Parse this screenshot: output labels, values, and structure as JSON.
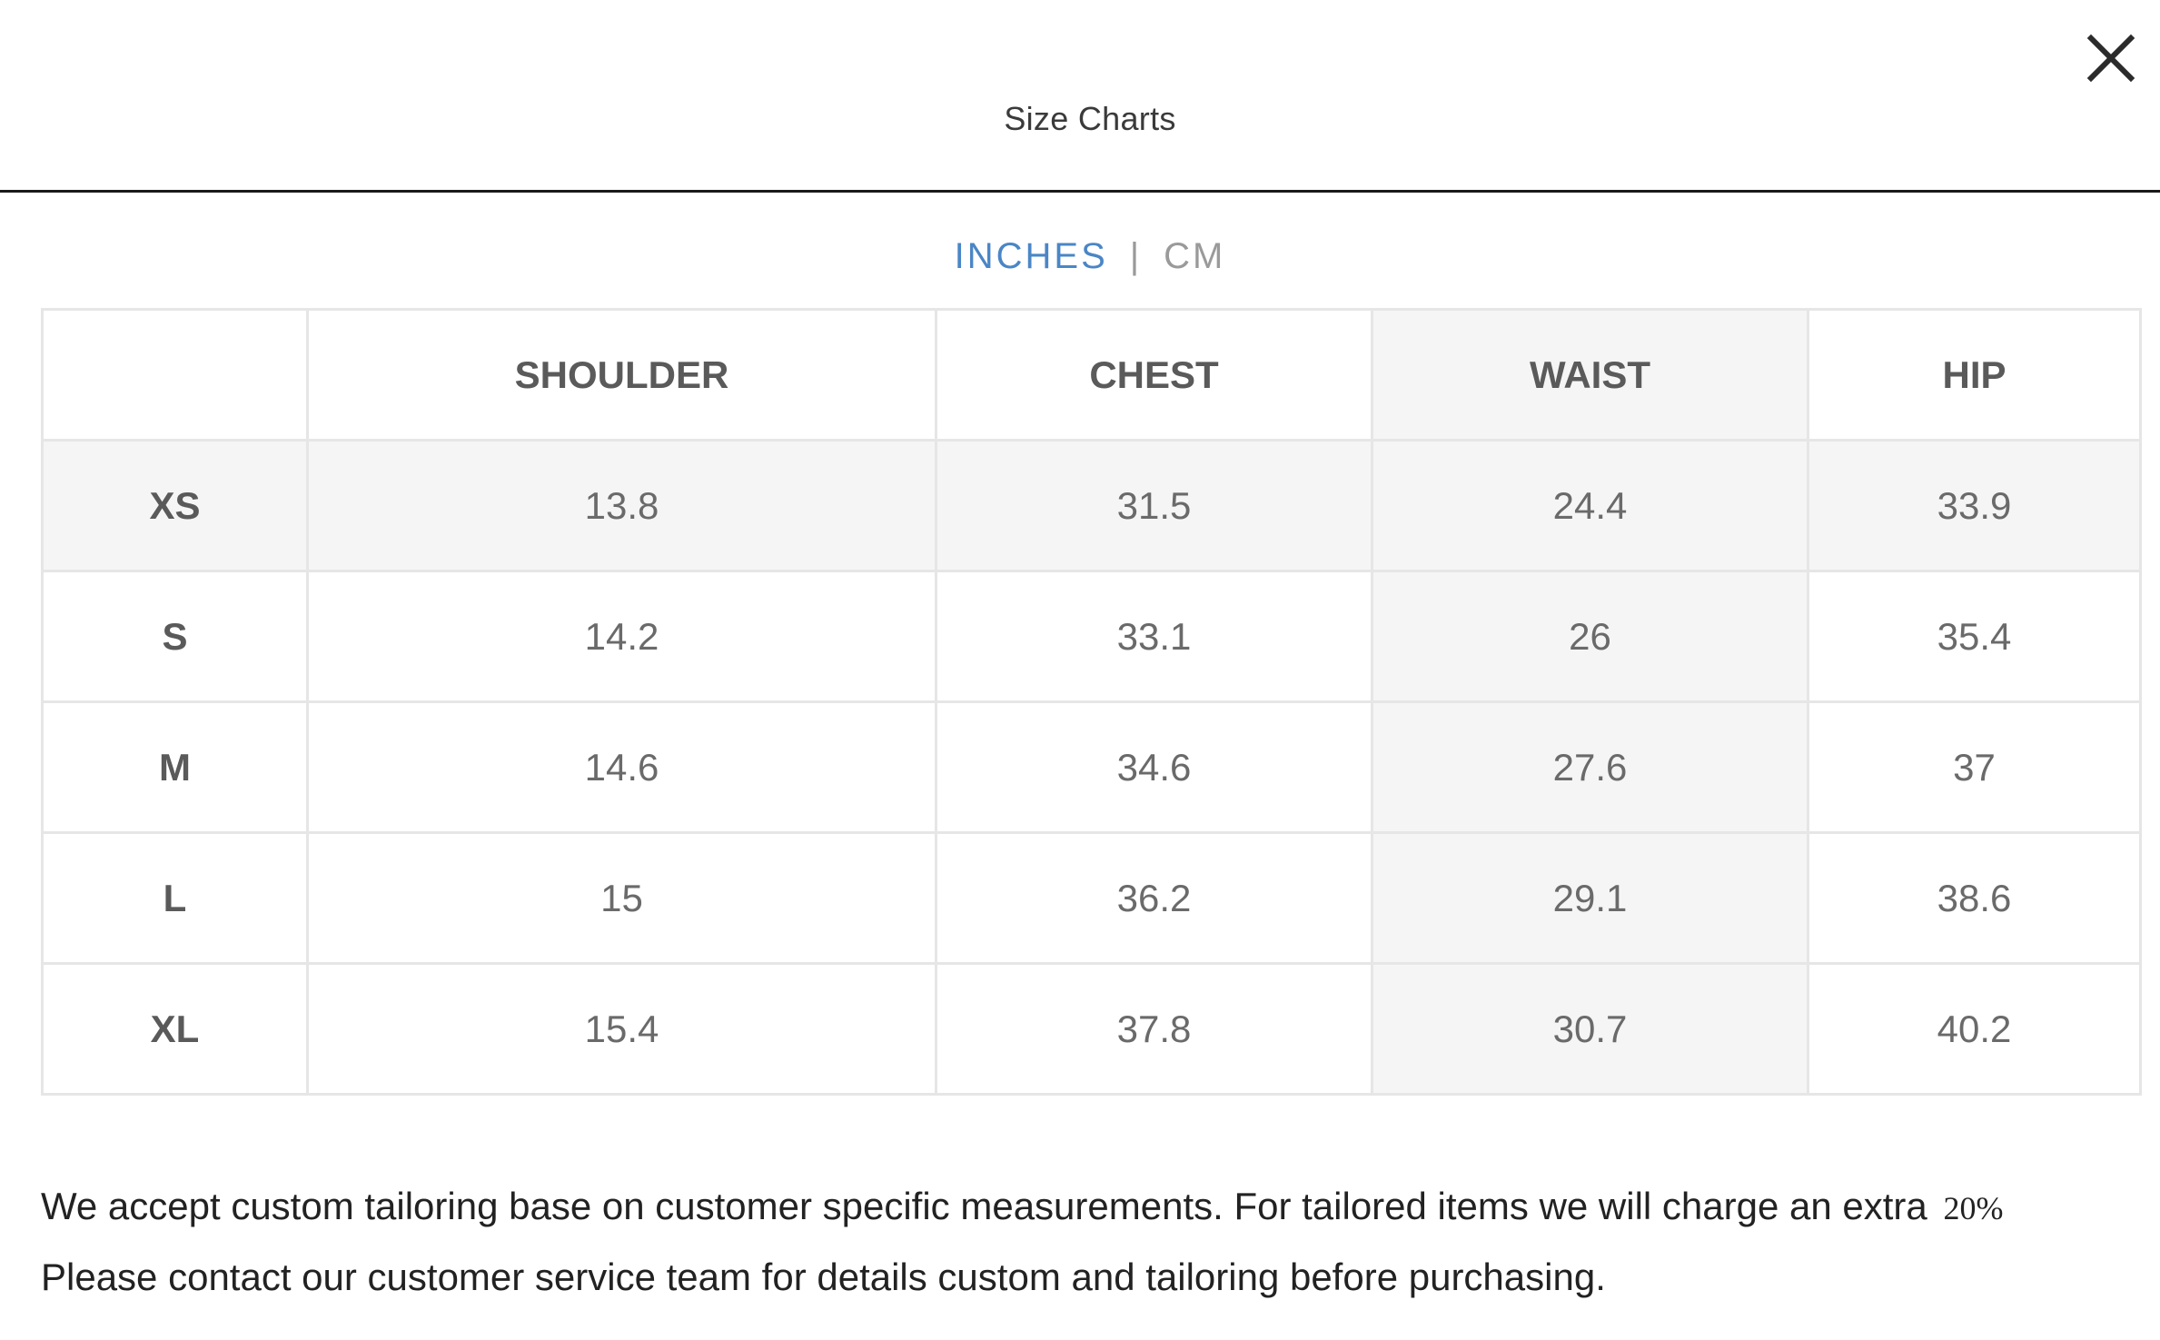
{
  "modal": {
    "title": "Size Charts",
    "close_icon": "close-icon"
  },
  "units": {
    "active": "INCHES",
    "separator": "|",
    "inactive": "CM"
  },
  "table": {
    "headers": [
      "",
      "SHOULDER",
      "CHEST",
      "WAIST",
      "HIP"
    ],
    "rows": [
      {
        "size": "XS",
        "values": [
          "13.8",
          "31.5",
          "24.4",
          "33.9"
        ]
      },
      {
        "size": "S",
        "values": [
          "14.2",
          "33.1",
          "26",
          "35.4"
        ]
      },
      {
        "size": "M",
        "values": [
          "14.6",
          "34.6",
          "27.6",
          "37"
        ]
      },
      {
        "size": "L",
        "values": [
          "15",
          "36.2",
          "29.1",
          "38.6"
        ]
      },
      {
        "size": "XL",
        "values": [
          "15.4",
          "37.8",
          "30.7",
          "40.2"
        ]
      }
    ]
  },
  "note": {
    "text_before": "We accept custom tailoring base on customer specific measurements. For tailored items we will charge an extra",
    "percent": "20%",
    "text_after": "Please contact our customer service team for details custom and tailoring before purchasing."
  },
  "colors": {
    "accent": "#4a86c6",
    "shade": "#f5f5f5",
    "border": "#e6e6e6"
  }
}
